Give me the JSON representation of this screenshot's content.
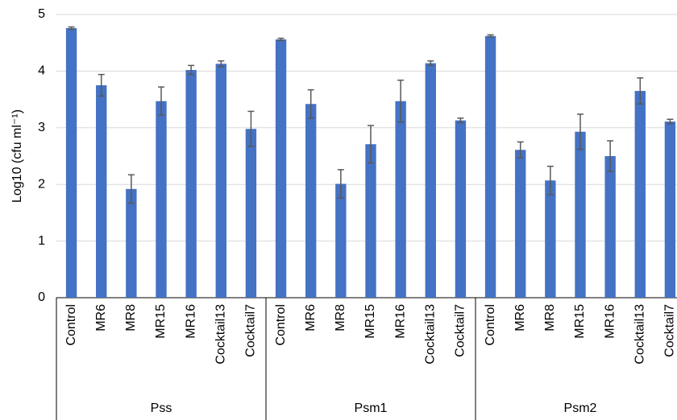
{
  "chart_data": {
    "type": "bar",
    "y_label": "Log10 (cfu ml⁻¹)",
    "color": "#4472c4",
    "error_color": "#595959",
    "ylim": [
      0,
      5
    ],
    "yticks": [
      0,
      1,
      2,
      3,
      4,
      5
    ],
    "grid": true,
    "groups": [
      {
        "name": "Pss",
        "categories": [
          "Control",
          "MR6",
          "MR8",
          "MR15",
          "MR16",
          "Cocktail13",
          "Cocktail7"
        ],
        "values": [
          4.76,
          3.75,
          1.92,
          3.47,
          4.02,
          4.13,
          2.98
        ],
        "errors": [
          0.02,
          0.19,
          0.25,
          0.25,
          0.08,
          0.05,
          0.31
        ]
      },
      {
        "name": "Psm1",
        "categories": [
          "Control",
          "MR6",
          "MR8",
          "MR15",
          "MR16",
          "Cocktail13",
          "Cocktail7"
        ],
        "values": [
          4.56,
          3.42,
          2.01,
          2.71,
          3.47,
          4.14,
          3.13
        ],
        "errors": [
          0.02,
          0.25,
          0.25,
          0.33,
          0.37,
          0.04,
          0.04
        ]
      },
      {
        "name": "Psm2",
        "categories": [
          "Control",
          "MR6",
          "MR8",
          "MR15",
          "MR16",
          "Cocktail13",
          "Cocktail7"
        ],
        "values": [
          4.62,
          2.61,
          2.07,
          2.93,
          2.5,
          3.65,
          3.11
        ],
        "errors": [
          0.02,
          0.14,
          0.25,
          0.31,
          0.27,
          0.23,
          0.04
        ]
      }
    ]
  }
}
